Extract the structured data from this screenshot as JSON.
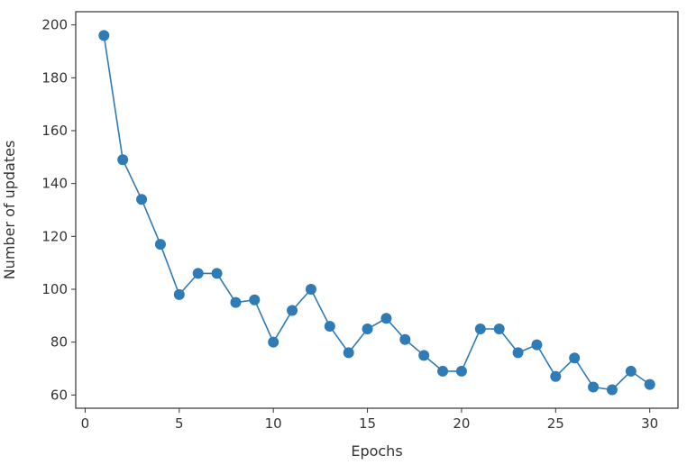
{
  "chart_data": {
    "type": "line",
    "title": "",
    "xlabel": "Epochs",
    "ylabel": "Number of updates",
    "xlim": [
      -0.5,
      31.5
    ],
    "ylim": [
      55,
      205
    ],
    "xticks": [
      0,
      5,
      10,
      15,
      20,
      25,
      30
    ],
    "yticks": [
      60,
      80,
      100,
      120,
      140,
      160,
      180,
      200
    ],
    "grid": false,
    "marker": "circle",
    "color": "#2f7bb6",
    "x": [
      1,
      2,
      3,
      4,
      5,
      6,
      7,
      8,
      9,
      10,
      11,
      12,
      13,
      14,
      15,
      16,
      17,
      18,
      19,
      20,
      21,
      22,
      23,
      24,
      25,
      26,
      27,
      28,
      29,
      30
    ],
    "series": [
      {
        "values": [
          196,
          149,
          134,
          117,
          98,
          106,
          106,
          95,
          96,
          80,
          92,
          100,
          86,
          76,
          85,
          89,
          81,
          75,
          69,
          69,
          85,
          85,
          76,
          79,
          67,
          74,
          63,
          62,
          69,
          64
        ]
      }
    ]
  }
}
